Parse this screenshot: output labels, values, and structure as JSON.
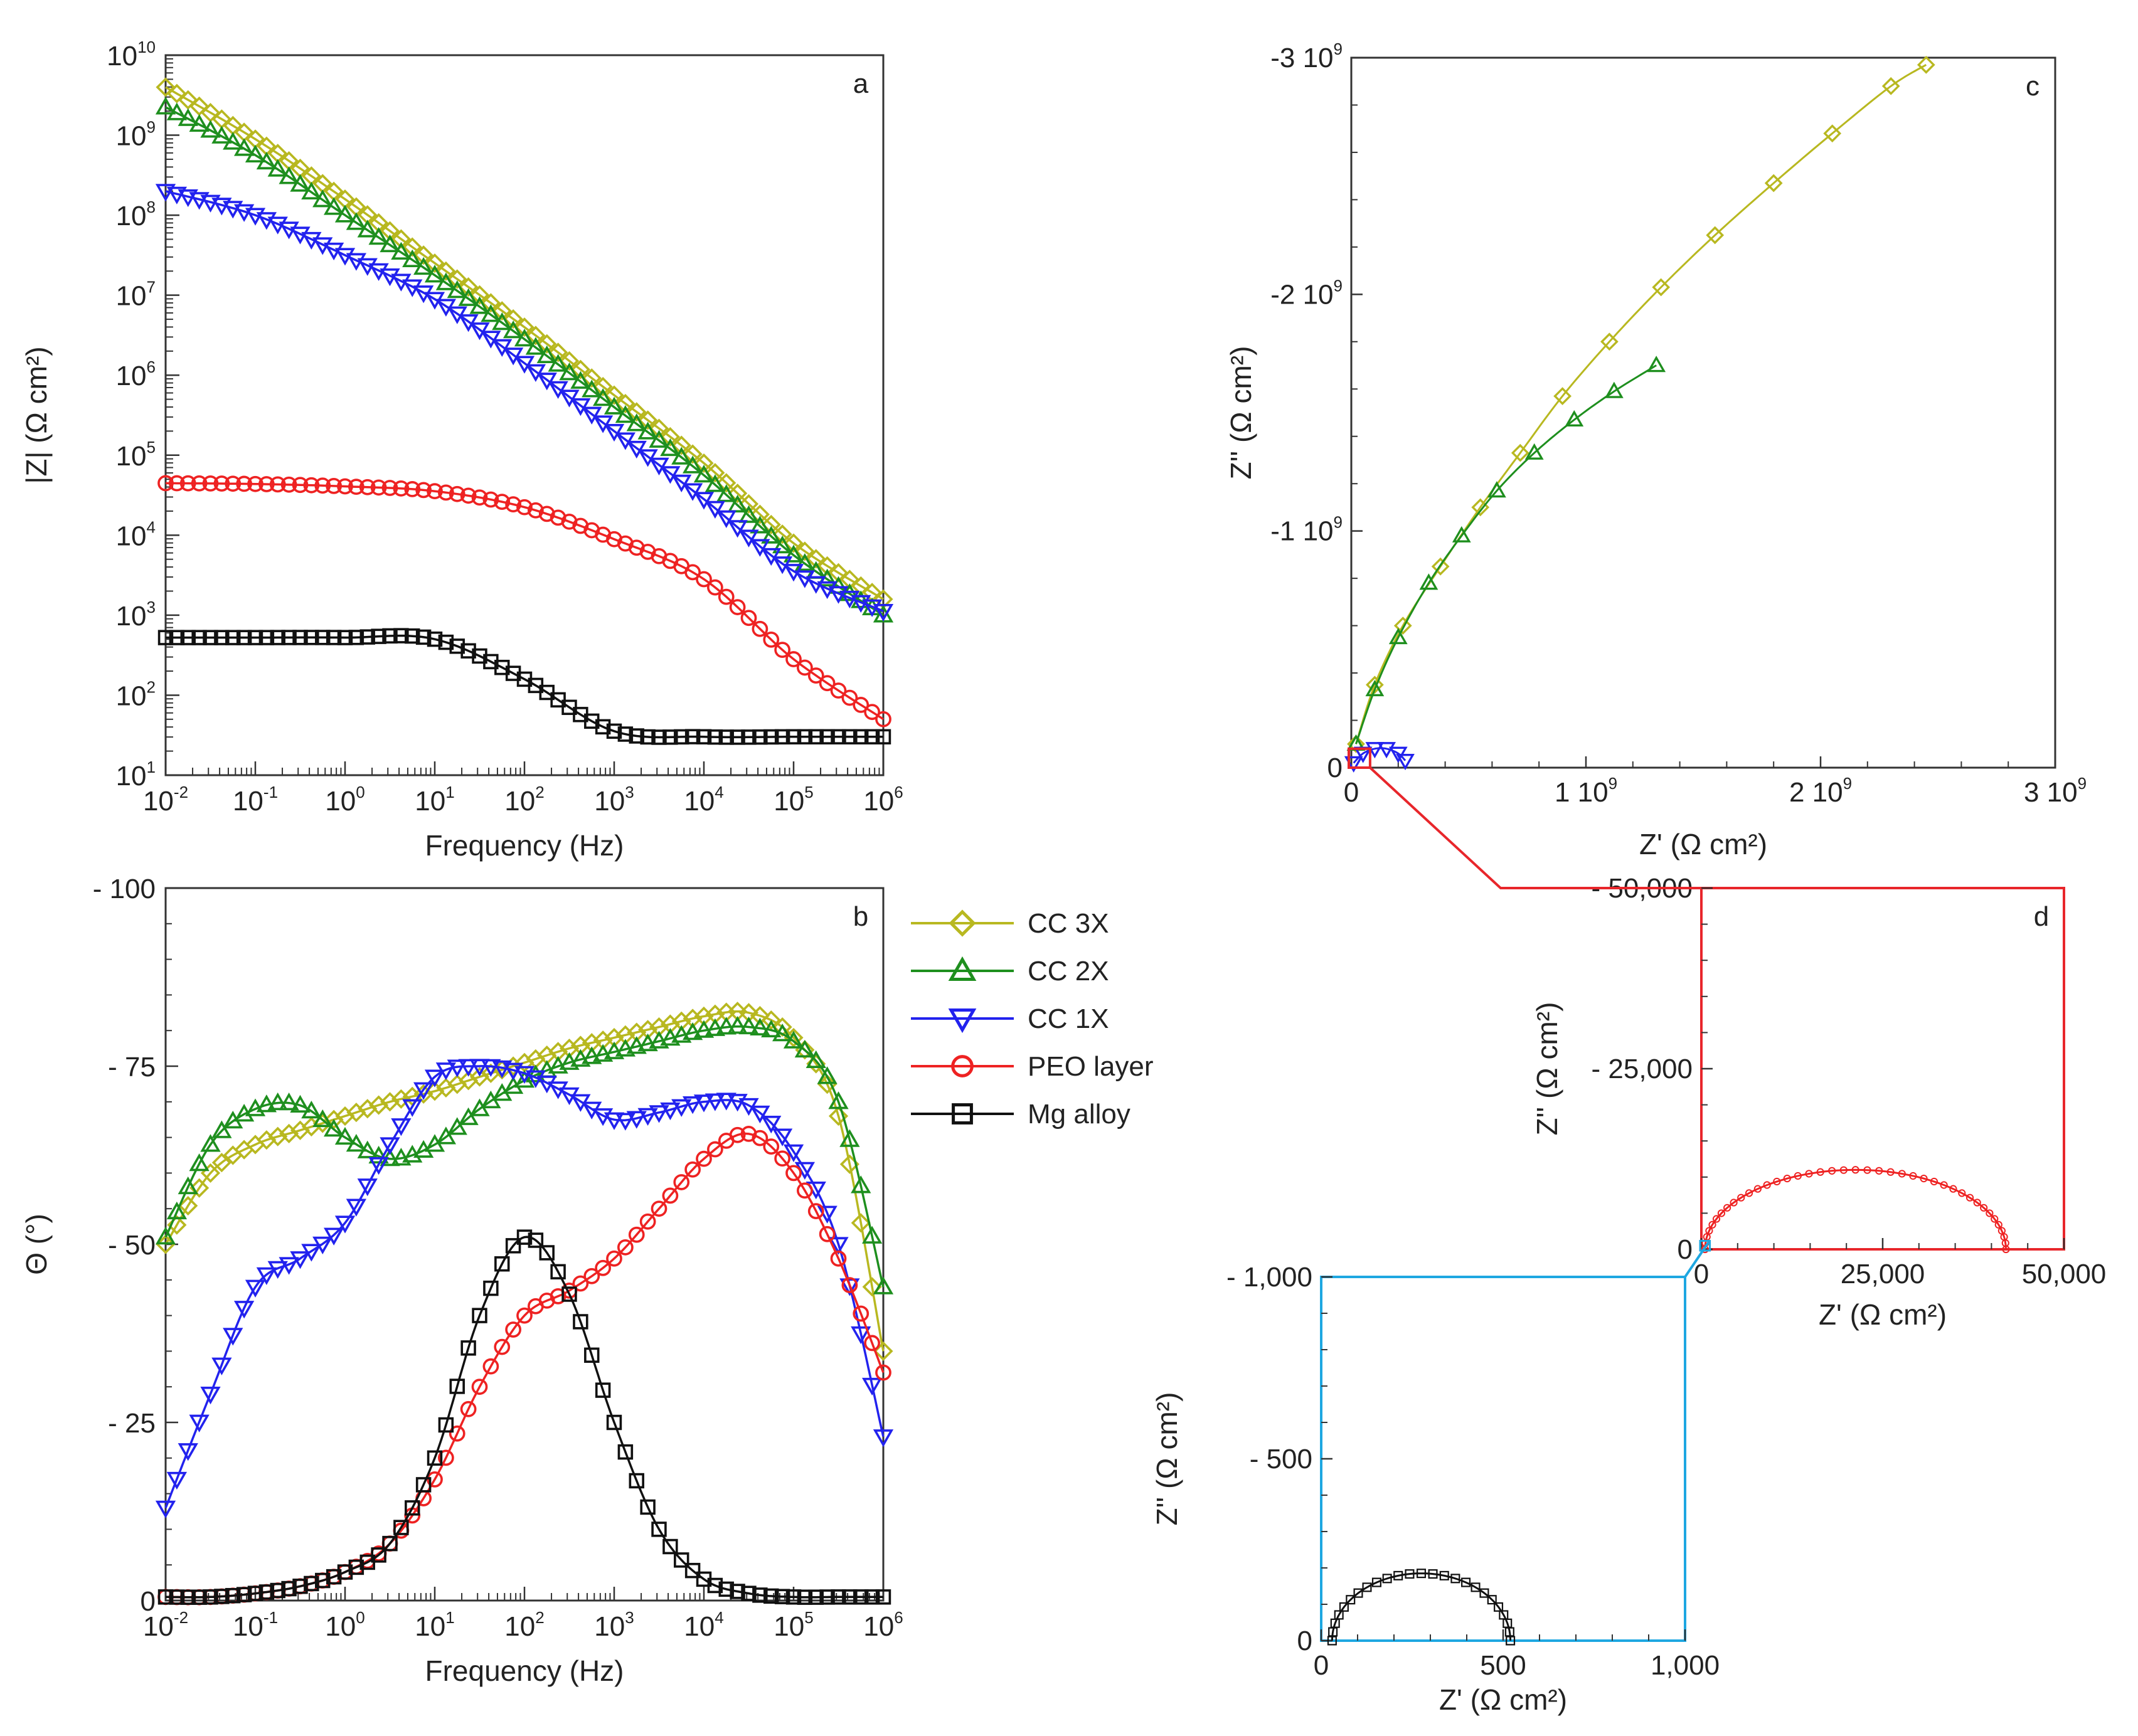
{
  "figure": {
    "series_meta": [
      {
        "key": "cc3x",
        "name": "CC 3X",
        "color": "#b8b820",
        "marker": "diamond"
      },
      {
        "key": "cc2x",
        "name": "CC 2X",
        "color": "#1e8f1e",
        "marker": "triangle-up"
      },
      {
        "key": "cc1x",
        "name": "CC 1X",
        "color": "#2222ee",
        "marker": "triangle-down"
      },
      {
        "key": "peo",
        "name": "PEO layer",
        "color": "#ee2222",
        "marker": "circle"
      },
      {
        "key": "mg",
        "name": "Mg alloy",
        "color": "#111111",
        "marker": "square"
      }
    ],
    "inset_link_colors": {
      "c_to_d": "#e8262b",
      "d_to_e": "#1ea7e1"
    }
  },
  "chart_data": [
    {
      "id": "a",
      "panel_label": "a",
      "type": "line",
      "xscale": "log",
      "yscale": "log",
      "xlabel": "Frequency (Hz)",
      "ylabel": "|Z| (Ω cm²)",
      "xlim": [
        0.01,
        1000000
      ],
      "ylim": [
        10,
        10000000000
      ],
      "xticks": [
        {
          "base": "10",
          "exp": "-2"
        },
        {
          "base": "10",
          "exp": "-1"
        },
        {
          "base": "10",
          "exp": "0"
        },
        {
          "base": "10",
          "exp": "1"
        },
        {
          "base": "10",
          "exp": "2"
        },
        {
          "base": "10",
          "exp": "3"
        },
        {
          "base": "10",
          "exp": "4"
        },
        {
          "base": "10",
          "exp": "5"
        },
        {
          "base": "10",
          "exp": "6"
        }
      ],
      "yticks": [
        {
          "base": "10",
          "exp": "1"
        },
        {
          "base": "10",
          "exp": "2"
        },
        {
          "base": "10",
          "exp": "3"
        },
        {
          "base": "10",
          "exp": "4"
        },
        {
          "base": "10",
          "exp": "5"
        },
        {
          "base": "10",
          "exp": "6"
        },
        {
          "base": "10",
          "exp": "7"
        },
        {
          "base": "10",
          "exp": "8"
        },
        {
          "base": "10",
          "exp": "9"
        },
        {
          "base": "10",
          "exp": "10"
        }
      ],
      "x_log10": [
        -2,
        -1,
        0,
        1,
        2,
        3,
        4,
        5,
        6
      ],
      "series": [
        {
          "name": "CC 3X",
          "log10_values": [
            9.6,
            8.95,
            8.2,
            7.4,
            6.6,
            5.75,
            4.9,
            3.9,
            3.2
          ]
        },
        {
          "name": "CC 2X",
          "log10_values": [
            9.35,
            8.75,
            8.0,
            7.25,
            6.45,
            5.6,
            4.75,
            3.75,
            3.0
          ]
        },
        {
          "name": "CC 1X",
          "log10_values": [
            8.3,
            8.0,
            7.5,
            6.95,
            6.15,
            5.3,
            4.45,
            3.55,
            3.05
          ]
        },
        {
          "name": "PEO layer",
          "log10_values": [
            4.65,
            4.64,
            4.61,
            4.55,
            4.35,
            3.95,
            3.45,
            2.45,
            1.7
          ]
        },
        {
          "name": "Mg alloy",
          "log10_values": [
            2.72,
            2.72,
            2.72,
            2.7,
            2.2,
            1.55,
            1.48,
            1.48,
            1.48
          ]
        }
      ]
    },
    {
      "id": "b",
      "panel_label": "b",
      "type": "line",
      "xscale": "log",
      "yscale": "linear",
      "xlabel": "Frequency (Hz)",
      "ylabel": "Θ (°)",
      "xlim": [
        0.01,
        1000000
      ],
      "ylim": [
        0,
        -100
      ],
      "xticks": [
        {
          "base": "10",
          "exp": "-2"
        },
        {
          "base": "10",
          "exp": "-1"
        },
        {
          "base": "10",
          "exp": "0"
        },
        {
          "base": "10",
          "exp": "1"
        },
        {
          "base": "10",
          "exp": "2"
        },
        {
          "base": "10",
          "exp": "3"
        },
        {
          "base": "10",
          "exp": "4"
        },
        {
          "base": "10",
          "exp": "5"
        },
        {
          "base": "10",
          "exp": "6"
        }
      ],
      "yticks": [
        {
          "value": 0,
          "label": "0"
        },
        {
          "value": -25,
          "label": "- 25"
        },
        {
          "value": -50,
          "label": "- 50"
        },
        {
          "value": -75,
          "label": "- 75"
        },
        {
          "value": -100,
          "label": "- 100"
        }
      ],
      "x_log10": [
        -2,
        -1.5,
        -1,
        -0.5,
        0,
        0.5,
        1,
        1.5,
        2,
        2.5,
        3,
        3.5,
        4,
        4.5,
        5,
        5.5,
        6
      ],
      "series": [
        {
          "name": "CC 3X",
          "values": [
            -50,
            -60,
            -64,
            -66,
            -68,
            -70,
            -71.5,
            -73.5,
            -75.5,
            -77.5,
            -79,
            -80.5,
            -82,
            -82.5,
            -79,
            -68,
            -35
          ]
        },
        {
          "name": "CC 2X",
          "values": [
            -51,
            -64,
            -69,
            -69.5,
            -65,
            -62,
            -64,
            -69,
            -73,
            -75.5,
            -77,
            -78.5,
            -80,
            -80.5,
            -78.5,
            -70,
            -44
          ]
        },
        {
          "name": "CC 1X",
          "values": [
            -13,
            -29,
            -44,
            -48,
            -53,
            -64,
            -73.5,
            -75,
            -74,
            -71,
            -67.5,
            -68.5,
            -70,
            -69.5,
            -63,
            -50,
            -23
          ]
        },
        {
          "name": "PEO layer",
          "values": [
            -0.5,
            -0.5,
            -1,
            -2,
            -4,
            -8,
            -17,
            -30,
            -40,
            -43.5,
            -48,
            -55,
            -62,
            -65.5,
            -60,
            -48,
            -32
          ]
        },
        {
          "name": "Mg alloy",
          "values": [
            -0.5,
            -0.5,
            -1,
            -2,
            -4,
            -8,
            -20,
            -40,
            -51,
            -43,
            -25,
            -10,
            -3,
            -1,
            -0.5,
            -0.5,
            -0.5
          ]
        }
      ]
    },
    {
      "id": "c",
      "panel_label": "c",
      "type": "scatter",
      "xscale": "linear",
      "yscale": "linear",
      "xlabel": "Z' (Ω cm²)",
      "ylabel": "Z'' (Ω cm²)",
      "xlim": [
        0,
        3000000000
      ],
      "ylim": [
        0,
        -3000000000
      ],
      "xticks": [
        {
          "value": 0,
          "label": "0",
          "exp": ""
        },
        {
          "value": 1000000000,
          "label": "1 10",
          "exp": "9"
        },
        {
          "value": 2000000000,
          "label": "2 10",
          "exp": "9"
        },
        {
          "value": 3000000000,
          "label": "3 10",
          "exp": "9"
        }
      ],
      "yticks": [
        {
          "value": 0,
          "label": "0",
          "exp": ""
        },
        {
          "value": -1000000000,
          "label": "-1 10",
          "exp": "9"
        },
        {
          "value": -2000000000,
          "label": "-2 10",
          "exp": "9"
        },
        {
          "value": -3000000000,
          "label": "-3 10",
          "exp": "9"
        }
      ],
      "units_note": "values in units of 1e9 Ω cm²",
      "series": [
        {
          "name": "CC 3X",
          "x": [
            0.02,
            0.1,
            0.22,
            0.38,
            0.55,
            0.72,
            0.9,
            1.1,
            1.32,
            1.55,
            1.8,
            2.05,
            2.3,
            2.45
          ],
          "y": [
            -0.1,
            -0.35,
            -0.6,
            -0.85,
            -1.1,
            -1.33,
            -1.57,
            -1.8,
            -2.03,
            -2.25,
            -2.47,
            -2.68,
            -2.88,
            -2.97
          ]
        },
        {
          "name": "CC 2X",
          "x": [
            0.02,
            0.1,
            0.2,
            0.33,
            0.47,
            0.62,
            0.78,
            0.95,
            1.12,
            1.3
          ],
          "y": [
            -0.1,
            -0.33,
            -0.55,
            -0.78,
            -0.98,
            -1.17,
            -1.33,
            -1.47,
            -1.59,
            -1.7
          ]
        },
        {
          "name": "CC 1X",
          "x": [
            0.01,
            0.05,
            0.1,
            0.15,
            0.2,
            0.23
          ],
          "y": [
            -0.02,
            -0.06,
            -0.08,
            -0.08,
            -0.06,
            -0.03
          ]
        }
      ]
    },
    {
      "id": "d",
      "panel_label": "d",
      "type": "scatter",
      "xscale": "linear",
      "yscale": "linear",
      "xlabel": "Z' (Ω cm²)",
      "ylabel": "Z'' (Ω cm²)",
      "xlim": [
        0,
        50000
      ],
      "ylim": [
        0,
        -50000
      ],
      "xticks": [
        {
          "value": 0,
          "label": "0"
        },
        {
          "value": 25000,
          "label": "25,000"
        },
        {
          "value": 50000,
          "label": "50,000"
        }
      ],
      "yticks": [
        {
          "value": 0,
          "label": "0"
        },
        {
          "value": -25000,
          "label": "- 25,000"
        },
        {
          "value": -50000,
          "label": "- 50,000"
        }
      ],
      "series": [
        {
          "name": "PEO layer",
          "semicircle": {
            "x_start": 500,
            "x_end": 42000,
            "peak_x": 23000,
            "peak_y": -11000
          }
        }
      ]
    },
    {
      "id": "e",
      "panel_label": "",
      "type": "scatter",
      "xscale": "linear",
      "yscale": "linear",
      "xlabel": "Z' (Ω cm²)",
      "ylabel": "Z'' (Ω cm²)",
      "xlim": [
        0,
        1000
      ],
      "ylim": [
        0,
        -1000
      ],
      "xticks": [
        {
          "value": 0,
          "label": "0"
        },
        {
          "value": 500,
          "label": "500"
        },
        {
          "value": 1000,
          "label": "1,000"
        }
      ],
      "yticks": [
        {
          "value": 0,
          "label": "0"
        },
        {
          "value": -500,
          "label": "- 500"
        },
        {
          "value": -1000,
          "label": "- 1,000"
        }
      ],
      "series": [
        {
          "name": "Mg alloy",
          "semicircle": {
            "x_start": 30,
            "x_end": 520,
            "peak_x": 275,
            "peak_y": -185
          }
        }
      ]
    }
  ]
}
